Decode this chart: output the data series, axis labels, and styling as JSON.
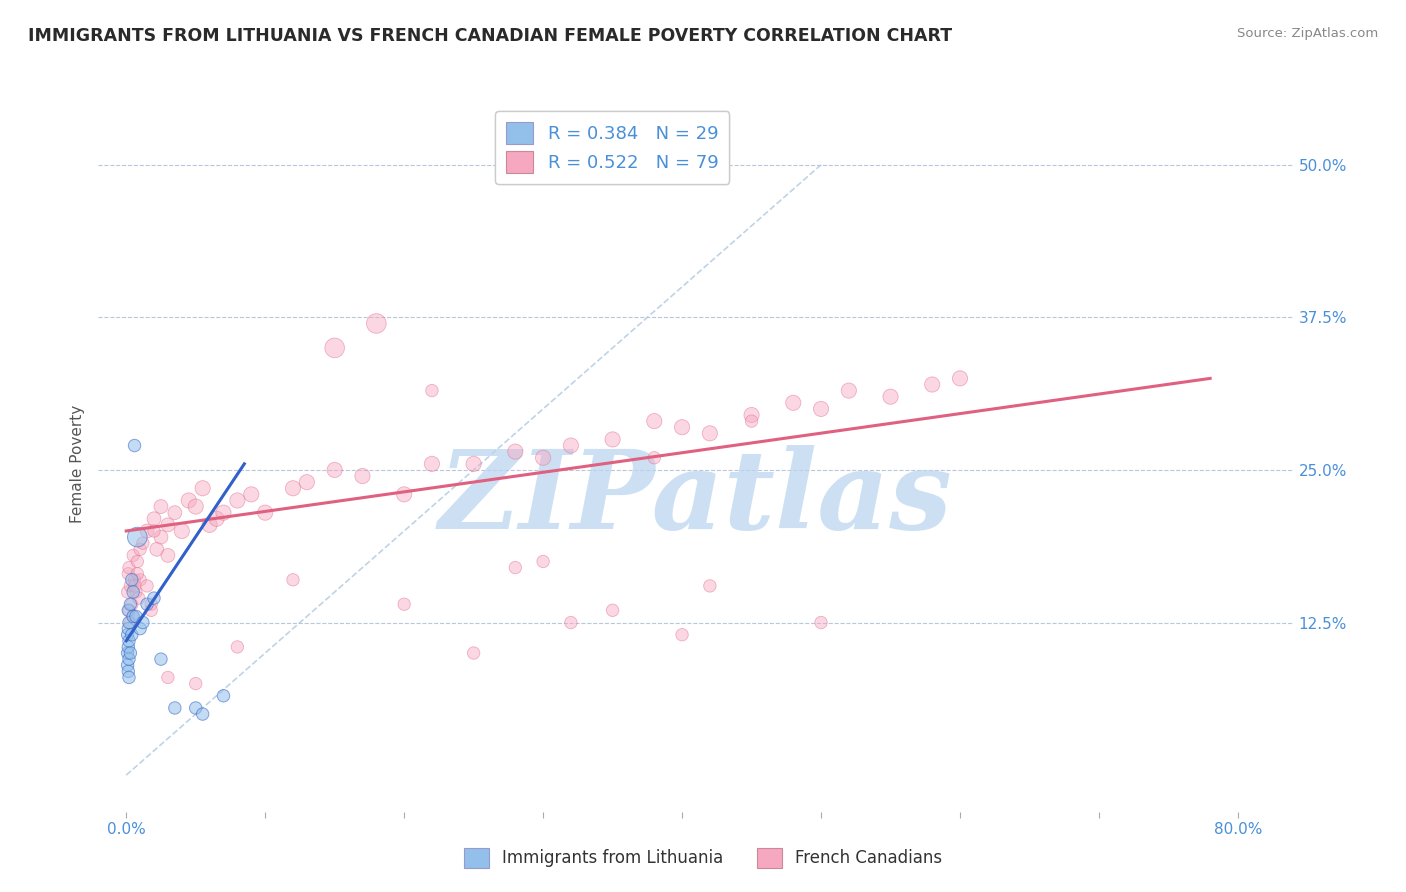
{
  "title": "IMMIGRANTS FROM LITHUANIA VS FRENCH CANADIAN FEMALE POVERTY CORRELATION CHART",
  "source": "Source: ZipAtlas.com",
  "ylabel": "Female Poverty",
  "x_ticks": [
    0.0,
    10.0,
    20.0,
    30.0,
    40.0,
    50.0,
    60.0,
    70.0,
    80.0
  ],
  "x_tick_labels": [
    "0.0%",
    "",
    "",
    "",
    "",
    "",
    "",
    "",
    "80.0%"
  ],
  "y_tick_labels": [
    "",
    "12.5%",
    "25.0%",
    "37.5%",
    "50.0%"
  ],
  "y_ticks": [
    0.0,
    12.5,
    25.0,
    37.5,
    50.0
  ],
  "xlim": [
    -2,
    84
  ],
  "ylim": [
    -3,
    54
  ],
  "legend_entries": [
    {
      "label": "R = 0.384   N = 29",
      "color": "#a8c8f0"
    },
    {
      "label": "R = 0.522   N = 79",
      "color": "#f8b0c0"
    }
  ],
  "legend_bottom": [
    {
      "label": "Immigrants from Lithuania",
      "color": "#a8c8f0"
    },
    {
      "label": "French Canadians",
      "color": "#f8b0c0"
    }
  ],
  "blue_scatter_x": [
    0.1,
    0.1,
    0.1,
    0.15,
    0.15,
    0.15,
    0.15,
    0.2,
    0.2,
    0.2,
    0.2,
    0.3,
    0.3,
    0.4,
    0.4,
    0.5,
    0.5,
    0.6,
    0.7,
    0.8,
    1.0,
    1.2,
    1.5,
    2.0,
    2.5,
    3.5,
    5.0,
    5.5,
    7.0
  ],
  "blue_scatter_y": [
    10.0,
    11.5,
    9.0,
    12.0,
    8.5,
    10.5,
    13.5,
    11.0,
    9.5,
    8.0,
    12.5,
    14.0,
    10.0,
    16.0,
    11.5,
    15.0,
    13.0,
    27.0,
    13.0,
    19.5,
    12.0,
    12.5,
    14.0,
    14.5,
    9.5,
    5.5,
    5.5,
    5.0,
    6.5
  ],
  "blue_scatter_sizes": [
    80,
    80,
    80,
    80,
    80,
    80,
    80,
    80,
    80,
    80,
    80,
    80,
    80,
    80,
    80,
    80,
    80,
    80,
    80,
    200,
    80,
    80,
    80,
    80,
    80,
    80,
    80,
    80,
    80
  ],
  "pink_scatter_x": [
    0.1,
    0.15,
    0.2,
    0.2,
    0.3,
    0.3,
    0.4,
    0.5,
    0.5,
    0.6,
    0.7,
    0.8,
    0.9,
    1.0,
    1.0,
    1.2,
    1.5,
    1.5,
    1.8,
    2.0,
    2.2,
    2.5,
    2.5,
    3.0,
    3.0,
    3.5,
    4.0,
    4.5,
    5.0,
    5.5,
    6.0,
    6.5,
    7.0,
    8.0,
    9.0,
    10.0,
    12.0,
    13.0,
    15.0,
    17.0,
    20.0,
    22.0,
    25.0,
    28.0,
    30.0,
    32.0,
    35.0,
    38.0,
    40.0,
    42.0,
    45.0,
    48.0,
    50.0,
    52.0,
    55.0,
    58.0,
    60.0,
    12.0,
    20.0,
    28.0,
    35.0,
    42.0,
    50.0,
    15.0,
    18.0,
    22.0,
    30.0,
    38.0,
    45.0,
    25.0,
    32.0,
    40.0,
    8.0,
    5.0,
    3.0,
    1.8,
    2.0,
    0.6,
    0.8
  ],
  "pink_scatter_y": [
    15.0,
    16.5,
    13.5,
    17.0,
    12.5,
    15.5,
    14.0,
    18.0,
    13.0,
    16.0,
    15.0,
    17.5,
    14.5,
    18.5,
    16.0,
    19.0,
    20.0,
    15.5,
    14.0,
    21.0,
    18.5,
    22.0,
    19.5,
    20.5,
    18.0,
    21.5,
    20.0,
    22.5,
    22.0,
    23.5,
    20.5,
    21.0,
    21.5,
    22.5,
    23.0,
    21.5,
    23.5,
    24.0,
    25.0,
    24.5,
    23.0,
    25.5,
    25.5,
    26.5,
    26.0,
    27.0,
    27.5,
    29.0,
    28.5,
    28.0,
    29.5,
    30.5,
    30.0,
    31.5,
    31.0,
    32.0,
    32.5,
    16.0,
    14.0,
    17.0,
    13.5,
    15.5,
    12.5,
    35.0,
    37.0,
    31.5,
    17.5,
    26.0,
    29.0,
    10.0,
    12.5,
    11.5,
    10.5,
    7.5,
    8.0,
    13.5,
    20.0,
    15.5,
    16.5
  ],
  "pink_scatter_sizes": [
    80,
    80,
    80,
    80,
    80,
    80,
    80,
    80,
    80,
    80,
    80,
    80,
    80,
    80,
    80,
    80,
    100,
    80,
    80,
    100,
    100,
    100,
    100,
    100,
    100,
    100,
    120,
    120,
    120,
    120,
    120,
    120,
    120,
    120,
    120,
    120,
    120,
    120,
    120,
    120,
    120,
    120,
    120,
    120,
    120,
    120,
    120,
    120,
    120,
    120,
    120,
    120,
    120,
    120,
    120,
    120,
    120,
    80,
    80,
    80,
    80,
    80,
    80,
    200,
    200,
    80,
    80,
    80,
    80,
    80,
    80,
    80,
    80,
    80,
    80,
    80,
    80,
    80,
    80
  ],
  "blue_line_x": [
    0.0,
    8.5
  ],
  "blue_line_y": [
    11.0,
    25.5
  ],
  "pink_line_x": [
    0.0,
    78.0
  ],
  "pink_line_y": [
    20.0,
    32.5
  ],
  "diag_line_x": [
    0.0,
    50.0
  ],
  "diag_line_y": [
    0.0,
    50.0
  ],
  "title_color": "#2a2a2a",
  "blue_color": "#92c0ea",
  "pink_color": "#f5a8c0",
  "blue_line_color": "#3060c8",
  "pink_line_color": "#e06080",
  "watermark_color": "#b8d4ee",
  "watermark_text": "ZIPatlas",
  "bg_color": "#ffffff",
  "grid_color": "#b8c8dc",
  "tick_label_color": "#4a90d9",
  "diag_color": "#b0c8e0"
}
